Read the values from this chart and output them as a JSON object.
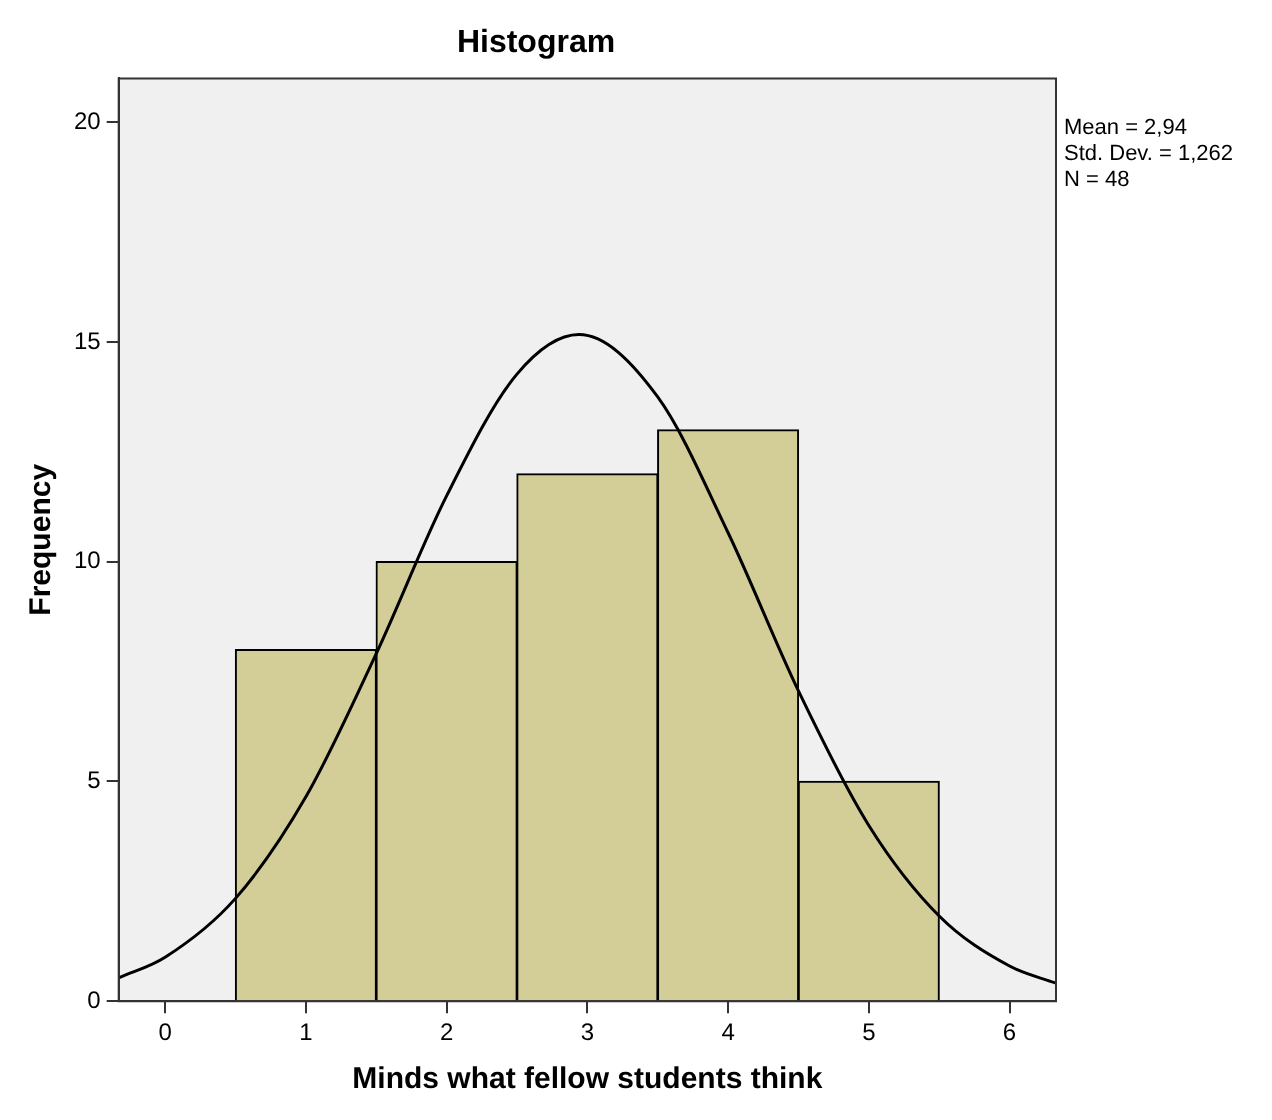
{
  "chart_data": {
    "type": "histogram",
    "title": "Histogram",
    "xlabel": "Minds what fellow students think",
    "ylabel": "Frequency",
    "bins": [
      0.5,
      1.5,
      2.5,
      3.5,
      4.5,
      5.5
    ],
    "values": [
      8,
      10,
      12,
      13,
      5
    ],
    "color": "#d3ce97",
    "series": [
      {
        "type": "line",
        "color": "#000000",
        "x": [
          -0.33,
          0,
          0.5,
          1,
          1.5,
          2,
          2.5,
          2.94,
          3.5,
          4,
          4.5,
          5,
          5.5,
          6,
          6.33
        ],
        "values": [
          0.53,
          1.0,
          2.34,
          4.65,
          7.91,
          11.5,
          14.27,
          15.17,
          13.75,
          10.66,
          7.06,
          4.0,
          1.94,
          0.8,
          0.41
        ]
      }
    ],
    "xlim": [
      -0.33,
      6.33
    ],
    "xticks": [
      0,
      1,
      2,
      3,
      4,
      5,
      6
    ],
    "ylim": [
      0,
      21
    ],
    "yticks": [
      0,
      5,
      10,
      15,
      20
    ],
    "annotations": [
      "Mean = 2,94",
      "Std. Dev. = 1,262",
      "N = 48"
    ],
    "grid": false,
    "legend": false,
    "marker": "none",
    "line_style": "solid"
  }
}
